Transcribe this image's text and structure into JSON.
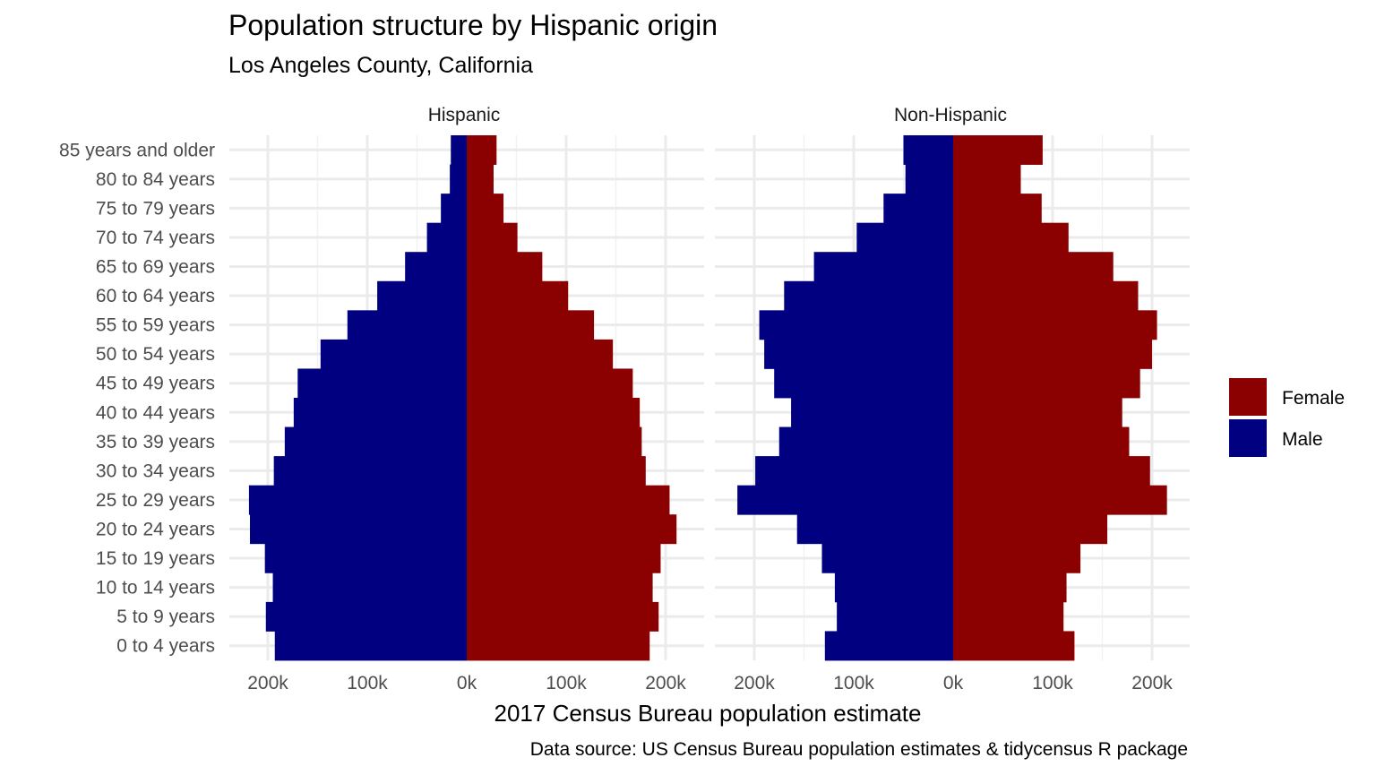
{
  "chart_data": {
    "type": "bar",
    "orientation": "horizontal",
    "layout": "population-pyramid",
    "title": "Population structure by Hispanic origin",
    "subtitle": "Los Angeles County, California",
    "xlabel": "2017 Census Bureau population estimate",
    "caption": "Data source: US Census Bureau population estimates & tidycensus R package",
    "xlim": [
      -240000,
      240000
    ],
    "x_ticks": [
      -200000,
      -100000,
      0,
      100000,
      200000
    ],
    "x_tick_labels": [
      "200k",
      "100k",
      "0k",
      "100k",
      "200k"
    ],
    "grid": true,
    "legend_position": "right",
    "legend": [
      {
        "name": "Female",
        "color": "#8b0000"
      },
      {
        "name": "Male",
        "color": "#000080"
      }
    ],
    "categories": [
      "0 to 4 years",
      "5 to 9 years",
      "10 to 14 years",
      "15 to 19 years",
      "20 to 24 years",
      "25 to 29 years",
      "30 to 34 years",
      "35 to 39 years",
      "40 to 44 years",
      "45 to 49 years",
      "50 to 54 years",
      "55 to 59 years",
      "60 to 64 years",
      "65 to 69 years",
      "70 to 74 years",
      "75 to 79 years",
      "80 to 84 years",
      "85 years and older"
    ],
    "panels": [
      {
        "name": "Hispanic",
        "series": [
          {
            "name": "Male",
            "values": [
              -193000,
              -202000,
              -195000,
              -203000,
              -218000,
              -219000,
              -194000,
              -183000,
              -174000,
              -170000,
              -147000,
              -120000,
              -90000,
              -62000,
              -40000,
              -26000,
              -17000,
              -16000
            ]
          },
          {
            "name": "Female",
            "values": [
              184000,
              193000,
              187000,
              195000,
              211000,
              204000,
              180000,
              176000,
              174000,
              167000,
              147000,
              128000,
              102000,
              76000,
              51000,
              37000,
              27000,
              30000
            ]
          }
        ]
      },
      {
        "name": "Non-Hispanic",
        "series": [
          {
            "name": "Male",
            "values": [
              -129000,
              -117000,
              -119000,
              -132000,
              -157000,
              -217000,
              -199000,
              -175000,
              -163000,
              -180000,
              -190000,
              -195000,
              -170000,
              -140000,
              -97000,
              -70000,
              -48000,
              -50000
            ]
          },
          {
            "name": "Female",
            "values": [
              122000,
              111000,
              114000,
              128000,
              155000,
              215000,
              198000,
              177000,
              170000,
              188000,
              200000,
              205000,
              186000,
              161000,
              116000,
              89000,
              68000,
              90000
            ]
          }
        ]
      }
    ]
  }
}
